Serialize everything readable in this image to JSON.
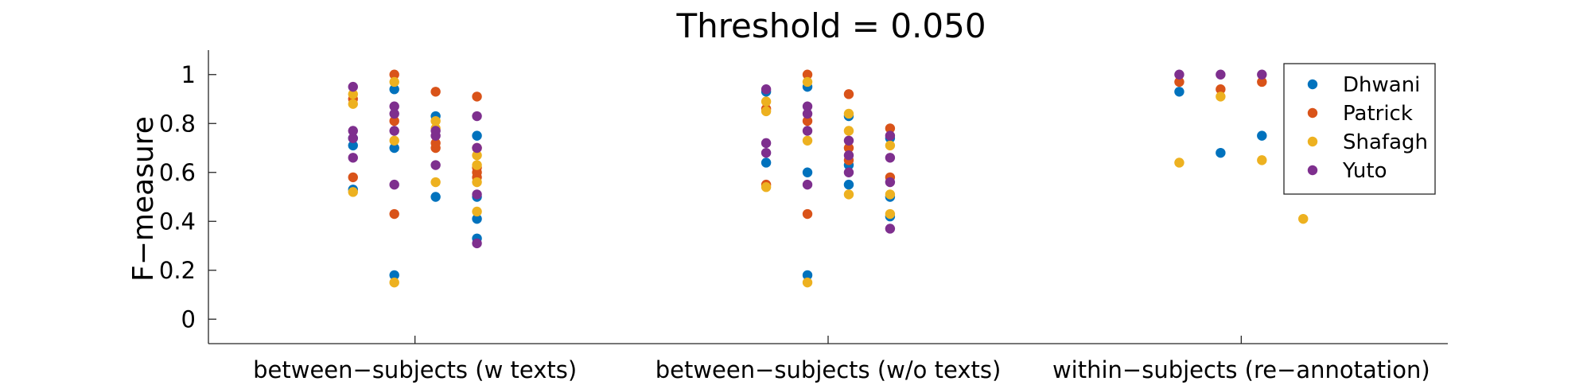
{
  "chart_data": {
    "type": "scatter",
    "title": "Threshold = 0.050",
    "ylabel": "F−measure",
    "xlabel": "",
    "ylim": [
      -0.1,
      1.1
    ],
    "yticks": [
      0,
      0.2,
      0.4,
      0.6,
      0.8,
      1
    ],
    "ytick_labels": [
      "0",
      "0.2",
      "0.4",
      "0.6",
      "0.8",
      "1"
    ],
    "categories": [
      "between−subjects (w texts)",
      "between−subjects (w/o texts)",
      "within−subjects (re−annotation)"
    ],
    "grid": false,
    "legend_position": "top-right",
    "series": [
      {
        "name": "Dhwani",
        "color": "#0072BD",
        "points": [
          {
            "x": 0.85,
            "y": 0.53
          },
          {
            "x": 0.85,
            "y": 0.71
          },
          {
            "x": 0.85,
            "y": 0.74
          },
          {
            "x": 0.95,
            "y": 0.18
          },
          {
            "x": 0.95,
            "y": 0.7
          },
          {
            "x": 0.95,
            "y": 0.94
          },
          {
            "x": 1.05,
            "y": 0.5
          },
          {
            "x": 1.05,
            "y": 0.83
          },
          {
            "x": 1.15,
            "y": 0.33
          },
          {
            "x": 1.15,
            "y": 0.41
          },
          {
            "x": 1.15,
            "y": 0.5
          },
          {
            "x": 1.15,
            "y": 0.75
          },
          {
            "x": 1.85,
            "y": 0.64
          },
          {
            "x": 1.85,
            "y": 0.93
          },
          {
            "x": 1.95,
            "y": 0.18
          },
          {
            "x": 1.95,
            "y": 0.6
          },
          {
            "x": 1.95,
            "y": 0.95
          },
          {
            "x": 2.05,
            "y": 0.55
          },
          {
            "x": 2.05,
            "y": 0.63
          },
          {
            "x": 2.05,
            "y": 0.83
          },
          {
            "x": 2.15,
            "y": 0.42
          },
          {
            "x": 2.15,
            "y": 0.5
          },
          {
            "x": 2.15,
            "y": 0.74
          },
          {
            "x": 2.85,
            "y": 0.93
          },
          {
            "x": 2.95,
            "y": 0.68
          },
          {
            "x": 3.05,
            "y": 0.75
          },
          {
            "x": 3.15,
            "y": 0.69
          }
        ]
      },
      {
        "name": "Patrick",
        "color": "#D95319",
        "points": [
          {
            "x": 0.85,
            "y": 0.58
          },
          {
            "x": 0.85,
            "y": 0.9
          },
          {
            "x": 0.95,
            "y": 0.43
          },
          {
            "x": 0.95,
            "y": 0.81
          },
          {
            "x": 0.95,
            "y": 1.0
          },
          {
            "x": 1.05,
            "y": 0.7
          },
          {
            "x": 1.05,
            "y": 0.72
          },
          {
            "x": 1.05,
            "y": 0.93
          },
          {
            "x": 1.15,
            "y": 0.58
          },
          {
            "x": 1.15,
            "y": 0.6
          },
          {
            "x": 1.15,
            "y": 0.62
          },
          {
            "x": 1.15,
            "y": 0.7
          },
          {
            "x": 1.15,
            "y": 0.91
          },
          {
            "x": 1.85,
            "y": 0.55
          },
          {
            "x": 1.85,
            "y": 0.86
          },
          {
            "x": 1.95,
            "y": 0.43
          },
          {
            "x": 1.95,
            "y": 0.81
          },
          {
            "x": 1.95,
            "y": 1.0
          },
          {
            "x": 2.05,
            "y": 0.65
          },
          {
            "x": 2.05,
            "y": 0.7
          },
          {
            "x": 2.05,
            "y": 0.92
          },
          {
            "x": 2.15,
            "y": 0.58
          },
          {
            "x": 2.15,
            "y": 0.78
          },
          {
            "x": 2.85,
            "y": 0.97
          },
          {
            "x": 2.95,
            "y": 0.94
          },
          {
            "x": 3.05,
            "y": 0.97
          },
          {
            "x": 3.15,
            "y": 0.59
          }
        ]
      },
      {
        "name": "Shafagh",
        "color": "#EDB120",
        "points": [
          {
            "x": 0.85,
            "y": 0.52
          },
          {
            "x": 0.85,
            "y": 0.88
          },
          {
            "x": 0.85,
            "y": 0.92
          },
          {
            "x": 0.95,
            "y": 0.15
          },
          {
            "x": 0.95,
            "y": 0.73
          },
          {
            "x": 0.95,
            "y": 0.97
          },
          {
            "x": 1.05,
            "y": 0.56
          },
          {
            "x": 1.05,
            "y": 0.78
          },
          {
            "x": 1.05,
            "y": 0.81
          },
          {
            "x": 1.15,
            "y": 0.44
          },
          {
            "x": 1.15,
            "y": 0.56
          },
          {
            "x": 1.15,
            "y": 0.63
          },
          {
            "x": 1.15,
            "y": 0.67
          },
          {
            "x": 1.85,
            "y": 0.54
          },
          {
            "x": 1.85,
            "y": 0.85
          },
          {
            "x": 1.85,
            "y": 0.89
          },
          {
            "x": 1.95,
            "y": 0.15
          },
          {
            "x": 1.95,
            "y": 0.73
          },
          {
            "x": 1.95,
            "y": 0.97
          },
          {
            "x": 2.05,
            "y": 0.51
          },
          {
            "x": 2.05,
            "y": 0.77
          },
          {
            "x": 2.05,
            "y": 0.84
          },
          {
            "x": 2.15,
            "y": 0.43
          },
          {
            "x": 2.15,
            "y": 0.51
          },
          {
            "x": 2.15,
            "y": 0.71
          },
          {
            "x": 2.85,
            "y": 0.64
          },
          {
            "x": 2.95,
            "y": 0.91
          },
          {
            "x": 3.05,
            "y": 0.65
          },
          {
            "x": 3.15,
            "y": 0.41
          }
        ]
      },
      {
        "name": "Yuto",
        "color": "#7E2F8E",
        "points": [
          {
            "x": 0.85,
            "y": 0.66
          },
          {
            "x": 0.85,
            "y": 0.74
          },
          {
            "x": 0.85,
            "y": 0.77
          },
          {
            "x": 0.85,
            "y": 0.95
          },
          {
            "x": 0.95,
            "y": 0.55
          },
          {
            "x": 0.95,
            "y": 0.77
          },
          {
            "x": 0.95,
            "y": 0.84
          },
          {
            "x": 0.95,
            "y": 0.87
          },
          {
            "x": 1.05,
            "y": 0.63
          },
          {
            "x": 1.05,
            "y": 0.75
          },
          {
            "x": 1.05,
            "y": 0.77
          },
          {
            "x": 1.15,
            "y": 0.31
          },
          {
            "x": 1.15,
            "y": 0.51
          },
          {
            "x": 1.15,
            "y": 0.7
          },
          {
            "x": 1.15,
            "y": 0.83
          },
          {
            "x": 1.85,
            "y": 0.68
          },
          {
            "x": 1.85,
            "y": 0.72
          },
          {
            "x": 1.85,
            "y": 0.94
          },
          {
            "x": 1.95,
            "y": 0.55
          },
          {
            "x": 1.95,
            "y": 0.77
          },
          {
            "x": 1.95,
            "y": 0.84
          },
          {
            "x": 1.95,
            "y": 0.87
          },
          {
            "x": 2.05,
            "y": 0.6
          },
          {
            "x": 2.05,
            "y": 0.67
          },
          {
            "x": 2.05,
            "y": 0.73
          },
          {
            "x": 2.15,
            "y": 0.37
          },
          {
            "x": 2.15,
            "y": 0.56
          },
          {
            "x": 2.15,
            "y": 0.66
          },
          {
            "x": 2.15,
            "y": 0.75
          },
          {
            "x": 2.85,
            "y": 1.0
          },
          {
            "x": 2.95,
            "y": 1.0
          },
          {
            "x": 3.05,
            "y": 1.0
          },
          {
            "x": 3.15,
            "y": 0.77
          }
        ]
      }
    ]
  }
}
